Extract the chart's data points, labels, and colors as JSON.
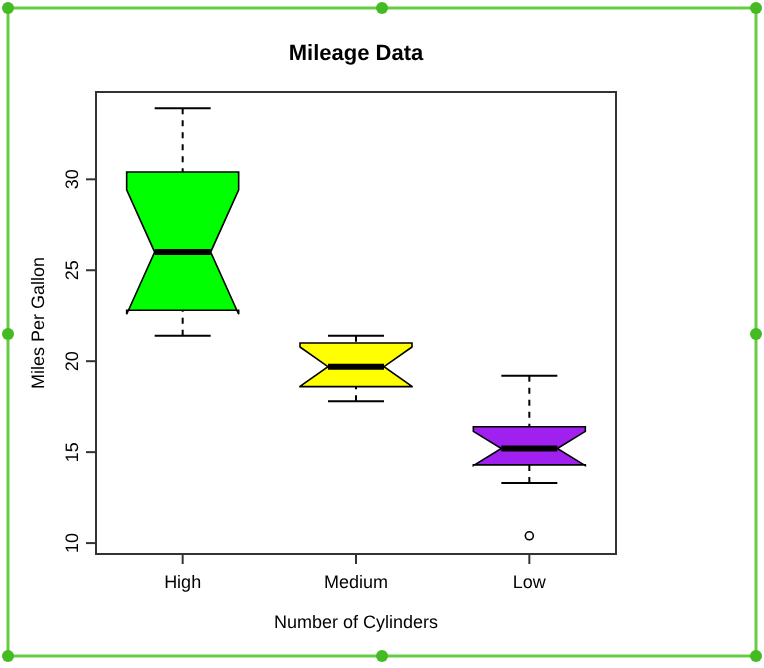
{
  "chart_data": {
    "type": "box",
    "title": "Mileage Data",
    "xlabel": "Number of Cylinders",
    "ylabel": "Miles Per Gallon",
    "categories": [
      "High",
      "Medium",
      "Low"
    ],
    "ylim": [
      9.4,
      34.8
    ],
    "yticks": [
      10,
      15,
      20,
      25,
      30
    ],
    "colors": [
      "#00ff00",
      "#ffff00",
      "#a020f0"
    ],
    "boxes": [
      {
        "low": 21.4,
        "q1": 22.8,
        "median": 26.0,
        "q3": 30.4,
        "high": 33.9
      },
      {
        "low": 17.8,
        "q1": 18.6,
        "median": 19.7,
        "q3": 21.0,
        "high": 21.4
      },
      {
        "low": 13.3,
        "q1": 14.3,
        "median": 15.2,
        "q3": 16.4,
        "high": 19.2,
        "outliers": [
          10.4
        ]
      }
    ],
    "grid": false
  }
}
